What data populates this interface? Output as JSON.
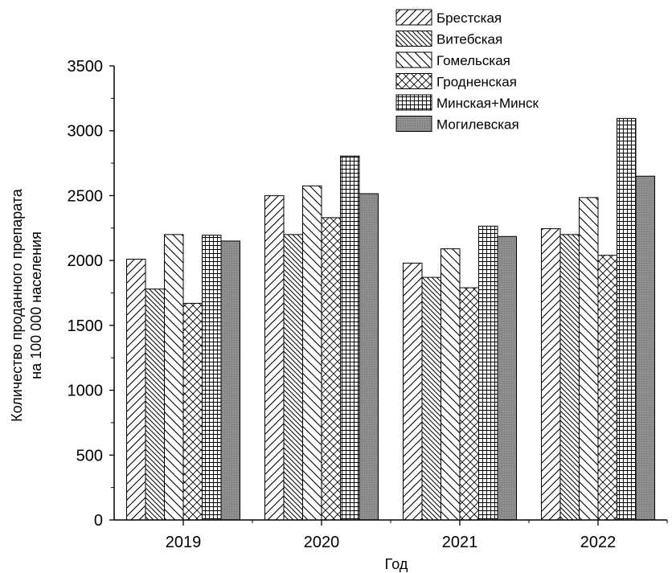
{
  "chart_data": {
    "type": "bar",
    "title": "",
    "xlabel": "Год",
    "ylabel_lines": [
      "Количество проданного препарата",
      "на 100 000 населения"
    ],
    "categories": [
      "2019",
      "2020",
      "2021",
      "2022"
    ],
    "ylim": [
      0,
      3500
    ],
    "yticks": [
      0,
      500,
      1000,
      1500,
      2000,
      2500,
      3000,
      3500
    ],
    "grid": false,
    "legend_position": "top-right",
    "series": [
      {
        "name": "Брестская",
        "pattern": "diag-up",
        "values": [
          2010,
          2500,
          1980,
          2245
        ]
      },
      {
        "name": "Витебская",
        "pattern": "diag-down-dense",
        "values": [
          1780,
          2200,
          1870,
          2200
        ]
      },
      {
        "name": "Гомельская",
        "pattern": "diag-down",
        "values": [
          2200,
          2575,
          2090,
          2485
        ]
      },
      {
        "name": "Гродненская",
        "pattern": "crosshatch",
        "values": [
          1670,
          2330,
          1790,
          2040
        ]
      },
      {
        "name": "Минская+Минск",
        "pattern": "grid",
        "values": [
          2195,
          2805,
          2265,
          3095
        ]
      },
      {
        "name": "Могилевская",
        "pattern": "solid-gray",
        "values": [
          2150,
          2515,
          2185,
          2650
        ]
      }
    ]
  }
}
